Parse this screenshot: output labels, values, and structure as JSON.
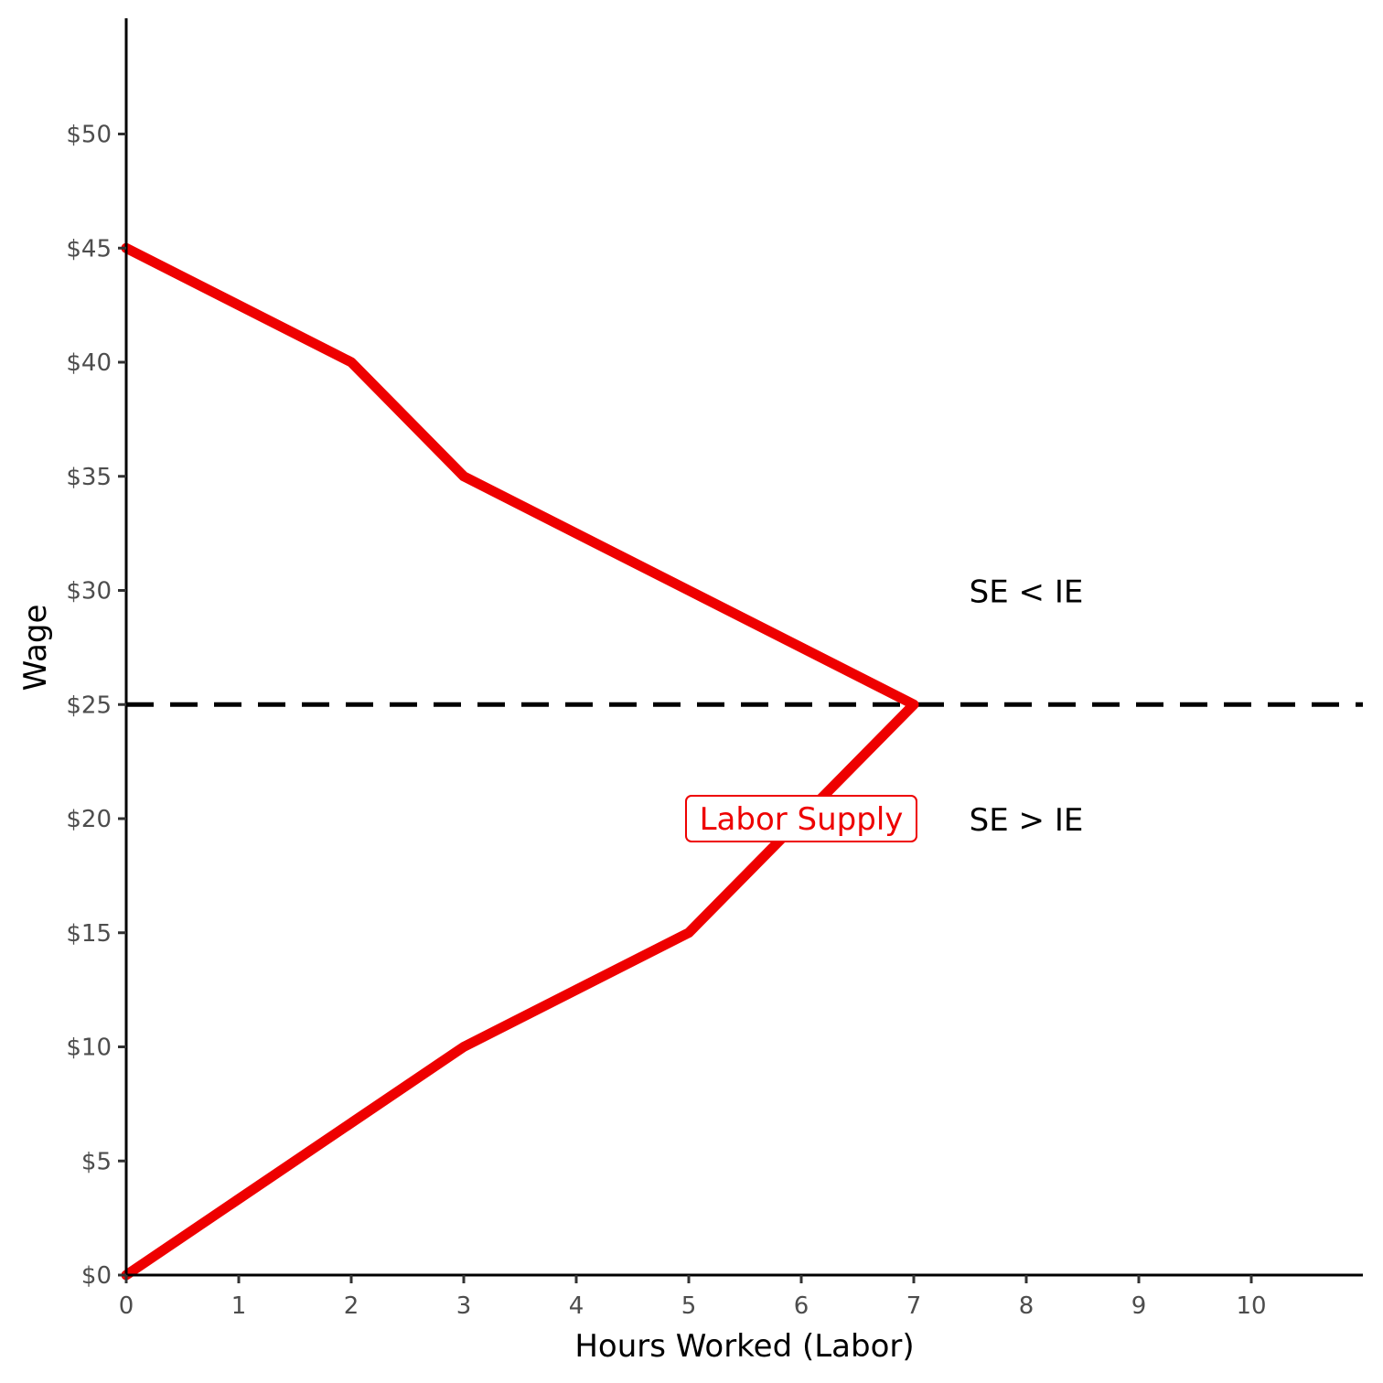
{
  "chart_data": {
    "type": "line",
    "xlabel": "Hours Worked (Labor)",
    "ylabel": "Wage",
    "xlim": [
      0,
      11
    ],
    "ylim": [
      0,
      55
    ],
    "x_ticks": [
      0,
      1,
      2,
      3,
      4,
      5,
      6,
      7,
      8,
      9,
      10
    ],
    "y_ticks": [
      0,
      5,
      10,
      15,
      20,
      25,
      30,
      35,
      40,
      45,
      50
    ],
    "y_tick_labels": [
      "$0",
      "$5",
      "$10",
      "$15",
      "$20",
      "$25",
      "$30",
      "$35",
      "$40",
      "$45",
      "$50"
    ],
    "grid": false,
    "series": [
      {
        "name": "Labor Supply",
        "color": "#ee0000",
        "points": [
          {
            "x": 0,
            "y": 0
          },
          {
            "x": 3,
            "y": 10
          },
          {
            "x": 5,
            "y": 15
          },
          {
            "x": 7,
            "y": 25
          },
          {
            "x": 5,
            "y": 30
          },
          {
            "x": 3,
            "y": 35
          },
          {
            "x": 2,
            "y": 40
          },
          {
            "x": 0,
            "y": 45
          }
        ]
      }
    ],
    "reference_lines": [
      {
        "type": "horizontal",
        "y": 25,
        "style": "dashed",
        "color": "#000000"
      }
    ],
    "annotations": [
      {
        "text": "SE < IE",
        "x": 8,
        "y": 30
      },
      {
        "text": "SE > IE",
        "x": 8,
        "y": 20
      }
    ],
    "series_label": {
      "text": "Labor Supply",
      "x": 6,
      "y": 20
    }
  }
}
